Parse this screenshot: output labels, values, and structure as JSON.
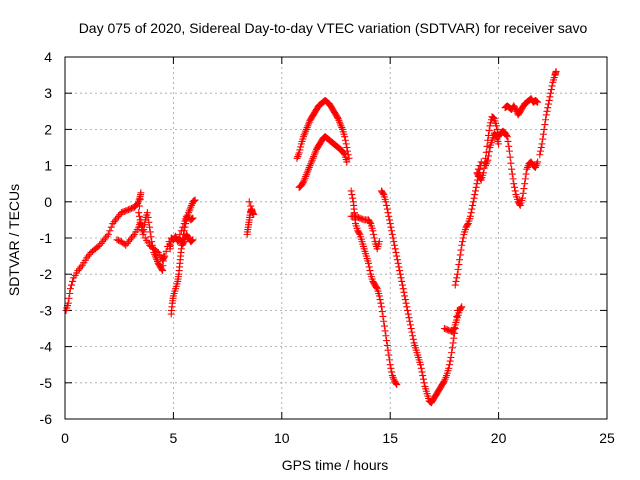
{
  "chart_data": {
    "type": "scatter",
    "title": "Day 075 of 2020, Sidereal Day-to-day VTEC variation (SDTVAR) for receiver savo",
    "xlabel": "GPS time / hours",
    "ylabel": "SDTVAR / TECUs",
    "xlim": [
      0,
      25
    ],
    "ylim": [
      -6,
      4
    ],
    "xticks": [
      "0",
      "5",
      "10",
      "15",
      "20",
      "25"
    ],
    "yticks": [
      "-6",
      "-5",
      "-4",
      "-3",
      "-2",
      "-1",
      "0",
      "1",
      "2",
      "3",
      "4"
    ],
    "grid": true,
    "marker": "+",
    "color": "#ff0000",
    "series": [
      {
        "points": [
          [
            0.05,
            -3.0
          ],
          [
            0.15,
            -2.8
          ],
          [
            0.25,
            -2.4
          ],
          [
            0.4,
            -2.1
          ],
          [
            0.6,
            -1.9
          ],
          [
            0.8,
            -1.75
          ],
          [
            1.0,
            -1.55
          ],
          [
            1.2,
            -1.4
          ],
          [
            1.4,
            -1.3
          ],
          [
            1.6,
            -1.2
          ],
          [
            1.8,
            -1.05
          ],
          [
            2.0,
            -0.9
          ],
          [
            2.2,
            -0.6
          ],
          [
            2.4,
            -0.45
          ],
          [
            2.6,
            -0.3
          ],
          [
            2.8,
            -0.25
          ],
          [
            3.0,
            -0.2
          ],
          [
            3.2,
            -0.15
          ],
          [
            3.35,
            -0.05
          ],
          [
            3.45,
            0.1
          ],
          [
            3.5,
            0.25
          ],
          [
            3.4,
            -0.3
          ],
          [
            3.5,
            -0.6
          ],
          [
            3.6,
            -0.9
          ],
          [
            3.7,
            -0.5
          ],
          [
            3.8,
            -0.3
          ],
          [
            3.9,
            -0.7
          ],
          [
            4.0,
            -1.1
          ],
          [
            4.1,
            -1.4
          ],
          [
            4.2,
            -1.55
          ],
          [
            4.3,
            -1.7
          ],
          [
            4.4,
            -1.8
          ],
          [
            4.5,
            -1.9
          ],
          [
            4.55,
            -1.5
          ],
          [
            2.4,
            -1.05
          ],
          [
            2.6,
            -1.1
          ],
          [
            2.8,
            -1.2
          ],
          [
            3.0,
            -1.05
          ],
          [
            3.2,
            -0.9
          ],
          [
            3.4,
            -0.7
          ],
          [
            3.5,
            -0.5
          ],
          [
            3.7,
            -1.0
          ],
          [
            3.9,
            -1.2
          ],
          [
            4.1,
            -1.3
          ],
          [
            4.3,
            -1.4
          ],
          [
            4.5,
            -1.6
          ],
          [
            4.6,
            -1.5
          ],
          [
            4.8,
            -1.1
          ],
          [
            4.85,
            -1.3
          ],
          [
            4.9,
            -1.0
          ],
          [
            5.0,
            -1.05
          ],
          [
            5.1,
            -0.95
          ],
          [
            5.2,
            -1.1
          ],
          [
            5.3,
            -1.0
          ],
          [
            5.4,
            -1.2
          ],
          [
            5.5,
            -1.1
          ],
          [
            5.6,
            -0.9
          ],
          [
            5.7,
            -1.0
          ],
          [
            5.8,
            -1.1
          ],
          [
            5.9,
            -1.05
          ],
          [
            4.9,
            -3.1
          ],
          [
            4.95,
            -2.8
          ],
          [
            5.0,
            -2.6
          ],
          [
            5.1,
            -2.4
          ],
          [
            5.2,
            -2.2
          ],
          [
            5.25,
            -2.0
          ],
          [
            5.3,
            -1.7
          ],
          [
            5.35,
            -1.4
          ],
          [
            5.4,
            -1.1
          ],
          [
            5.5,
            -0.8
          ],
          [
            5.6,
            -0.5
          ],
          [
            5.7,
            -0.3
          ],
          [
            5.8,
            -0.15
          ],
          [
            5.9,
            0.0
          ],
          [
            6.0,
            0.05
          ],
          [
            5.3,
            -0.9
          ],
          [
            5.5,
            -0.6
          ],
          [
            5.6,
            -0.4
          ],
          [
            5.8,
            -0.5
          ],
          [
            5.9,
            -0.45
          ],
          [
            8.4,
            -0.9
          ],
          [
            8.45,
            -0.7
          ],
          [
            8.5,
            -0.5
          ],
          [
            8.55,
            -0.3
          ],
          [
            8.6,
            -0.2
          ],
          [
            8.65,
            -0.3
          ],
          [
            8.7,
            -0.35
          ],
          [
            8.5,
            0.0
          ],
          [
            10.7,
            1.2
          ],
          [
            10.8,
            1.35
          ],
          [
            10.9,
            1.6
          ],
          [
            11.0,
            1.8
          ],
          [
            11.1,
            1.95
          ],
          [
            11.2,
            2.1
          ],
          [
            11.3,
            2.25
          ],
          [
            11.4,
            2.35
          ],
          [
            11.5,
            2.45
          ],
          [
            11.6,
            2.55
          ],
          [
            11.7,
            2.65
          ],
          [
            11.8,
            2.7
          ],
          [
            11.9,
            2.75
          ],
          [
            12.0,
            2.8
          ],
          [
            12.1,
            2.75
          ],
          [
            12.2,
            2.7
          ],
          [
            12.3,
            2.6
          ],
          [
            12.4,
            2.5
          ],
          [
            12.5,
            2.4
          ],
          [
            12.6,
            2.3
          ],
          [
            12.7,
            2.15
          ],
          [
            12.8,
            2.0
          ],
          [
            12.9,
            1.8
          ],
          [
            13.0,
            1.5
          ],
          [
            13.1,
            1.2
          ],
          [
            10.8,
            0.4
          ],
          [
            10.9,
            0.45
          ],
          [
            11.0,
            0.55
          ],
          [
            11.1,
            0.7
          ],
          [
            11.2,
            0.85
          ],
          [
            11.3,
            1.0
          ],
          [
            11.4,
            1.15
          ],
          [
            11.5,
            1.3
          ],
          [
            11.6,
            1.45
          ],
          [
            11.7,
            1.55
          ],
          [
            11.8,
            1.65
          ],
          [
            11.9,
            1.75
          ],
          [
            12.0,
            1.8
          ],
          [
            12.1,
            1.75
          ],
          [
            12.2,
            1.7
          ],
          [
            12.3,
            1.65
          ],
          [
            12.4,
            1.6
          ],
          [
            12.5,
            1.55
          ],
          [
            12.6,
            1.5
          ],
          [
            12.7,
            1.45
          ],
          [
            12.8,
            1.4
          ],
          [
            12.9,
            1.3
          ],
          [
            13.0,
            1.1
          ],
          [
            13.2,
            0.3
          ],
          [
            13.3,
            0.0
          ],
          [
            13.35,
            -0.3
          ],
          [
            13.4,
            -0.6
          ],
          [
            13.5,
            -0.8
          ],
          [
            13.6,
            -0.9
          ],
          [
            13.7,
            -1.1
          ],
          [
            13.8,
            -1.3
          ],
          [
            13.9,
            -1.5
          ],
          [
            14.0,
            -1.7
          ],
          [
            14.1,
            -2.0
          ],
          [
            14.2,
            -2.2
          ],
          [
            14.3,
            -2.3
          ],
          [
            14.4,
            -2.4
          ],
          [
            14.5,
            -2.6
          ],
          [
            14.6,
            -2.9
          ],
          [
            14.7,
            -3.3
          ],
          [
            14.8,
            -3.7
          ],
          [
            14.9,
            -4.1
          ],
          [
            15.0,
            -4.5
          ],
          [
            15.1,
            -4.8
          ],
          [
            15.2,
            -4.95
          ],
          [
            15.3,
            -5.05
          ],
          [
            13.2,
            -0.4
          ],
          [
            13.4,
            -0.4
          ],
          [
            13.6,
            -0.45
          ],
          [
            13.8,
            -0.5
          ],
          [
            14.0,
            -0.5
          ],
          [
            14.1,
            -0.6
          ],
          [
            14.2,
            -0.8
          ],
          [
            14.3,
            -1.1
          ],
          [
            14.4,
            -1.3
          ],
          [
            14.5,
            -1.1
          ],
          [
            14.6,
            0.3
          ],
          [
            14.7,
            0.2
          ],
          [
            14.8,
            0.0
          ],
          [
            14.9,
            -0.3
          ],
          [
            15.0,
            -0.6
          ],
          [
            15.1,
            -0.9
          ],
          [
            15.2,
            -1.2
          ],
          [
            15.3,
            -1.5
          ],
          [
            15.4,
            -1.8
          ],
          [
            15.5,
            -2.1
          ],
          [
            15.6,
            -2.4
          ],
          [
            15.7,
            -2.7
          ],
          [
            15.8,
            -3.0
          ],
          [
            15.9,
            -3.3
          ],
          [
            16.0,
            -3.6
          ],
          [
            16.1,
            -3.9
          ],
          [
            16.2,
            -4.1
          ],
          [
            16.3,
            -4.3
          ],
          [
            16.4,
            -4.5
          ],
          [
            16.5,
            -4.8
          ],
          [
            16.6,
            -5.1
          ],
          [
            16.7,
            -5.3
          ],
          [
            16.8,
            -5.5
          ],
          [
            16.9,
            -5.55
          ],
          [
            17.0,
            -5.45
          ],
          [
            17.1,
            -5.35
          ],
          [
            17.2,
            -5.25
          ],
          [
            17.3,
            -5.15
          ],
          [
            17.4,
            -5.05
          ],
          [
            17.5,
            -4.95
          ],
          [
            17.6,
            -4.8
          ],
          [
            17.7,
            -4.6
          ],
          [
            17.8,
            -4.3
          ],
          [
            17.9,
            -3.9
          ],
          [
            18.0,
            -3.5
          ],
          [
            18.1,
            -3.0
          ],
          [
            17.5,
            -3.5
          ],
          [
            17.7,
            -3.55
          ],
          [
            17.9,
            -3.6
          ],
          [
            18.0,
            -3.4
          ],
          [
            18.1,
            -3.2
          ],
          [
            18.2,
            -3.0
          ],
          [
            18.3,
            -2.9
          ],
          [
            18.0,
            -2.3
          ],
          [
            18.1,
            -2.0
          ],
          [
            18.2,
            -1.6
          ],
          [
            18.3,
            -1.2
          ],
          [
            18.4,
            -0.9
          ],
          [
            18.5,
            -0.7
          ],
          [
            18.6,
            -0.6
          ],
          [
            18.7,
            -0.4
          ],
          [
            18.8,
            -0.1
          ],
          [
            18.9,
            0.2
          ],
          [
            19.0,
            0.5
          ],
          [
            19.1,
            0.8
          ],
          [
            19.2,
            1.1
          ],
          [
            19.0,
            0.8
          ],
          [
            19.1,
            0.7
          ],
          [
            19.2,
            0.6
          ],
          [
            19.3,
            0.8
          ],
          [
            19.4,
            1.2
          ],
          [
            19.5,
            1.7
          ],
          [
            19.6,
            2.1
          ],
          [
            19.7,
            2.35
          ],
          [
            19.8,
            2.3
          ],
          [
            19.9,
            2.1
          ],
          [
            20.0,
            1.8
          ],
          [
            20.1,
            1.9
          ],
          [
            20.2,
            1.95
          ],
          [
            20.3,
            1.9
          ],
          [
            20.4,
            1.8
          ],
          [
            20.5,
            1.4
          ],
          [
            20.6,
            0.9
          ],
          [
            20.7,
            0.5
          ],
          [
            20.8,
            0.2
          ],
          [
            20.9,
            0.0
          ],
          [
            21.0,
            -0.1
          ],
          [
            21.1,
            0.1
          ],
          [
            21.2,
            0.5
          ],
          [
            21.3,
            0.9
          ],
          [
            21.4,
            1.05
          ],
          [
            21.5,
            1.1
          ],
          [
            21.6,
            1.0
          ],
          [
            21.7,
            0.95
          ],
          [
            21.8,
            1.1
          ],
          [
            19.4,
            1.0
          ],
          [
            19.5,
            1.15
          ],
          [
            19.6,
            1.5
          ],
          [
            19.7,
            1.7
          ],
          [
            19.8,
            1.9
          ],
          [
            19.9,
            1.8
          ],
          [
            20.0,
            1.6
          ],
          [
            20.3,
            2.6
          ],
          [
            20.4,
            2.65
          ],
          [
            20.5,
            2.6
          ],
          [
            20.6,
            2.55
          ],
          [
            20.7,
            2.65
          ],
          [
            20.8,
            2.55
          ],
          [
            20.9,
            2.4
          ],
          [
            21.0,
            2.5
          ],
          [
            21.1,
            2.6
          ],
          [
            21.2,
            2.7
          ],
          [
            21.3,
            2.75
          ],
          [
            21.4,
            2.8
          ],
          [
            21.5,
            2.85
          ],
          [
            21.6,
            2.75
          ],
          [
            21.7,
            2.8
          ],
          [
            21.8,
            2.75
          ],
          [
            21.9,
            1.3
          ],
          [
            22.0,
            1.6
          ],
          [
            22.1,
            2.0
          ],
          [
            22.2,
            2.4
          ],
          [
            22.3,
            2.7
          ],
          [
            22.4,
            3.0
          ],
          [
            22.5,
            3.3
          ],
          [
            22.6,
            3.5
          ],
          [
            22.65,
            3.6
          ]
        ]
      }
    ]
  }
}
